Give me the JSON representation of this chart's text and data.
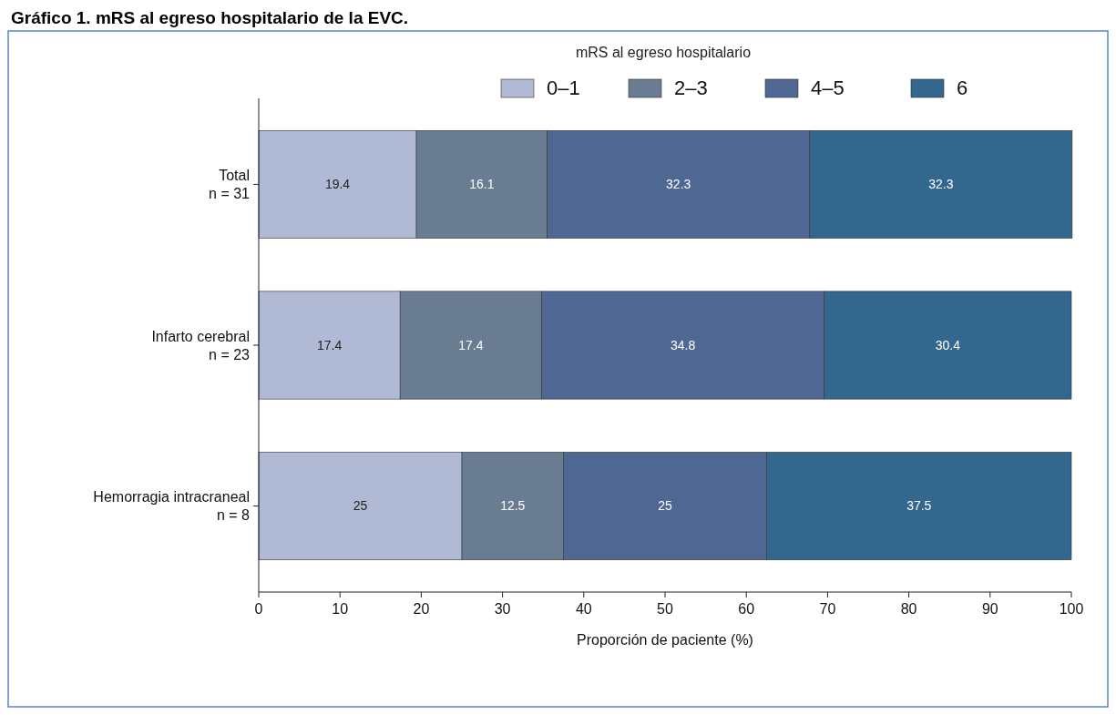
{
  "chart_data": {
    "type": "bar",
    "orientation": "horizontal",
    "stacked": true,
    "title": "Gráfico 1. mRS al egreso hospitalario de la EVC.",
    "categories": [
      "Total\nn = 31",
      "Infarto cerebral\nn = 23",
      "Hemorragia intracraneal\nn = 8"
    ],
    "series": [
      {
        "name": "0–1",
        "color": "#b0bad4",
        "values": [
          19.4,
          17.4,
          25
        ]
      },
      {
        "name": "2–3",
        "color": "#6a7c92",
        "values": [
          16.1,
          17.4,
          12.5
        ]
      },
      {
        "name": "4–5",
        "color": "#4f6793",
        "values": [
          32.3,
          34.8,
          25
        ]
      },
      {
        "name": "6",
        "color": "#34678e",
        "values": [
          32.3,
          30.4,
          37.5
        ]
      }
    ],
    "xlim": [
      0,
      100
    ],
    "xticks": [
      0,
      10,
      20,
      30,
      40,
      50,
      60,
      70,
      80,
      90,
      100
    ],
    "xlabel": "Proporción de paciente (%)",
    "legend_title": "mRS al egreso hospitalario",
    "legend": "top",
    "data_labels": true,
    "grid": false
  }
}
